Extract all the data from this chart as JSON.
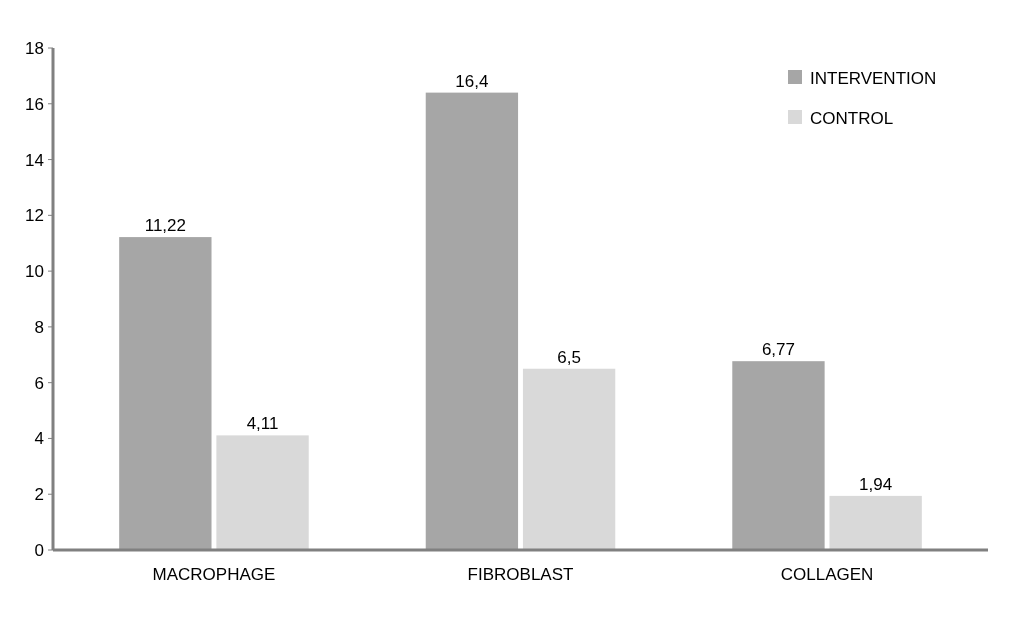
{
  "chart_data": {
    "type": "bar",
    "categories": [
      "MACROPHAGE",
      "FIBROBLAST",
      "COLLAGEN"
    ],
    "series": [
      {
        "name": "INTERVENTION",
        "color": "#a6a6a6",
        "values": [
          11.22,
          16.4,
          6.77
        ],
        "value_labels": [
          "11,22",
          "16,4",
          "6,77"
        ]
      },
      {
        "name": "CONTROL",
        "color": "#d9d9d9",
        "values": [
          4.11,
          6.5,
          1.94
        ],
        "value_labels": [
          "4,11",
          "6,5",
          "1,94"
        ]
      }
    ],
    "ylim": [
      0,
      18
    ],
    "yticks": [
      0,
      2,
      4,
      6,
      8,
      10,
      12,
      14,
      16,
      18
    ],
    "grid": false,
    "legend": "top right"
  }
}
